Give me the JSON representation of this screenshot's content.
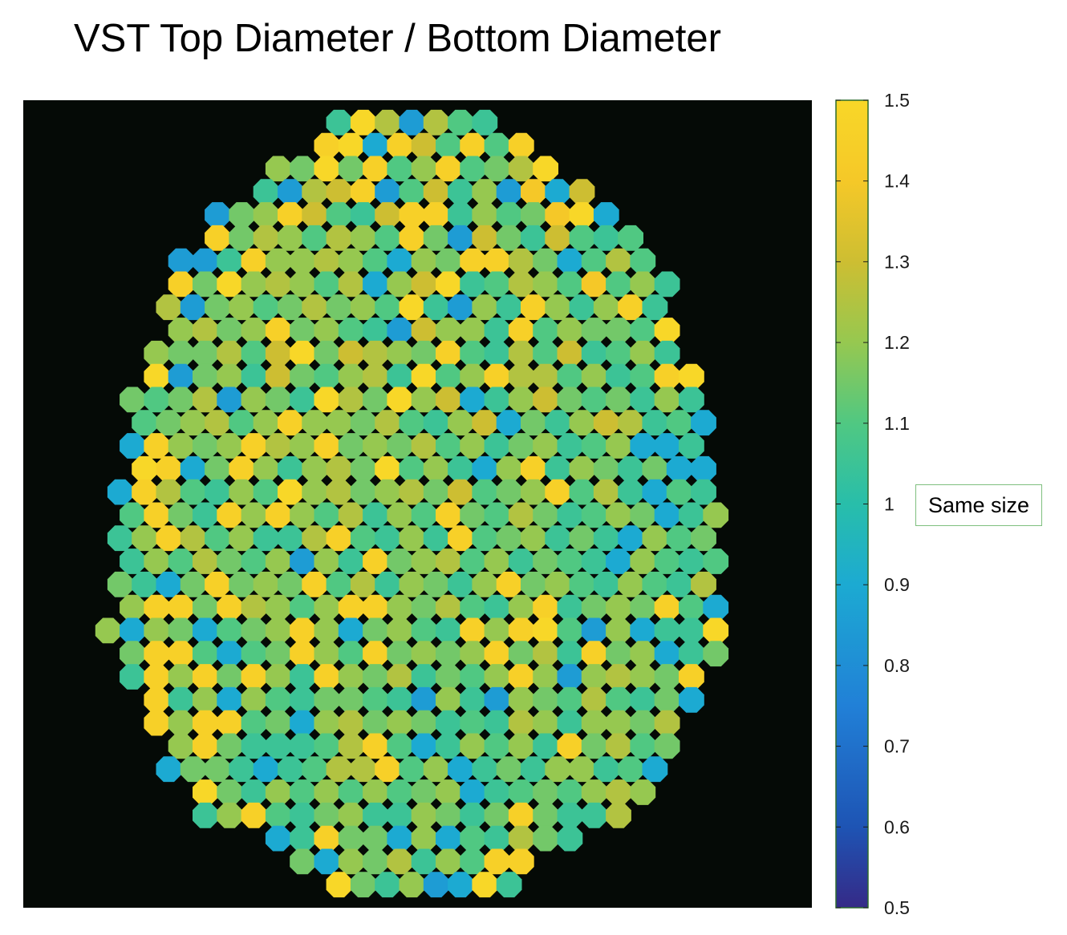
{
  "title": "VST Top Diameter / Bottom Diameter",
  "chart_data": {
    "type": "heatmap",
    "title": "VST Top Diameter / Bottom Diameter",
    "marker": "hexagonal cells packed in a circular bundle",
    "background_color": "#000000",
    "colormap": "parula",
    "colorbar": {
      "range": [
        0.5,
        1.5
      ],
      "ticks": [
        0.5,
        0.6,
        0.7,
        0.8,
        0.9,
        1,
        1.1,
        1.2,
        1.3,
        1.4,
        1.5
      ],
      "tick_labels": [
        "0.5",
        "0.6",
        "0.7",
        "0.8",
        "0.9",
        "1",
        "1.1",
        "1.2",
        "1.3",
        "1.4",
        "1.5"
      ],
      "position": "right"
    },
    "annotation": {
      "text": "Same size",
      "at_value": 1
    },
    "rows": [
      [
        1.05,
        1.5,
        1.25,
        0.85,
        1.25,
        1.1,
        1.05
      ],
      [
        1.45,
        1.5,
        0.9,
        1.45,
        1.3,
        1.1,
        1.45,
        1.1,
        1.45
      ],
      [
        1.2,
        1.15,
        1.5,
        1.15,
        1.45,
        1.1,
        1.2,
        1.45,
        1.1,
        1.15,
        1.25,
        1.5
      ],
      [
        1.05,
        0.85,
        1.25,
        1.3,
        1.45,
        0.85,
        1.1,
        1.3,
        1.05,
        1.2,
        0.85,
        1.4,
        0.9,
        1.3
      ],
      [
        0.85,
        1.15,
        1.2,
        1.45,
        1.3,
        1.1,
        1.05,
        1.3,
        1.45,
        1.45,
        1.05,
        1.2,
        1.1,
        1.15,
        1.4,
        1.5,
        0.9
      ],
      [
        1.45,
        1.15,
        1.25,
        1.2,
        1.1,
        1.25,
        1.2,
        1.1,
        1.45,
        1.15,
        0.85,
        1.3,
        1.15,
        1.05,
        1.3,
        1.1,
        1.05,
        1.1
      ],
      [
        0.85,
        0.85,
        1.05,
        1.45,
        1.2,
        1.2,
        1.25,
        1.2,
        1.1,
        0.9,
        1.2,
        1.15,
        1.45,
        1.45,
        1.25,
        1.15,
        0.9,
        1.1,
        1.25,
        1.1
      ],
      [
        1.45,
        1.15,
        1.5,
        1.2,
        1.25,
        1.2,
        1.1,
        1.25,
        0.9,
        1.2,
        1.3,
        1.5,
        1.05,
        1.1,
        1.25,
        1.2,
        1.1,
        1.4,
        1.1,
        1.2,
        1.05
      ],
      [
        1.25,
        0.85,
        1.15,
        1.2,
        1.1,
        1.15,
        1.25,
        1.15,
        1.2,
        1.1,
        1.5,
        1.05,
        0.85,
        1.2,
        1.05,
        1.45,
        1.2,
        1.05,
        1.2,
        1.45,
        1.05
      ],
      [
        1.2,
        1.25,
        1.15,
        1.2,
        1.45,
        1.15,
        1.2,
        1.1,
        1.05,
        0.85,
        1.3,
        1.2,
        1.2,
        1.05,
        1.45,
        1.1,
        1.2,
        1.15,
        1.15,
        1.1,
        1.5
      ],
      [
        1.2,
        1.15,
        1.15,
        1.25,
        1.1,
        1.3,
        1.5,
        1.15,
        1.3,
        1.25,
        1.2,
        1.15,
        1.45,
        1.1,
        1.05,
        1.25,
        1.1,
        1.3,
        1.05,
        1.1,
        1.2,
        1.05
      ],
      [
        1.5,
        0.85,
        1.15,
        1.2,
        1.05,
        1.3,
        1.15,
        1.1,
        1.2,
        1.25,
        1.05,
        1.5,
        1.1,
        1.2,
        1.45,
        1.25,
        1.25,
        1.1,
        1.2,
        1.05,
        1.1,
        1.45,
        1.5
      ],
      [
        1.15,
        1.1,
        1.15,
        1.25,
        0.85,
        1.2,
        1.15,
        1.05,
        1.5,
        1.25,
        1.15,
        1.5,
        1.2,
        1.3,
        0.9,
        1.05,
        1.2,
        1.3,
        1.15,
        1.1,
        1.15,
        1.05,
        1.2,
        1.05
      ],
      [
        1.1,
        1.15,
        1.2,
        1.25,
        1.1,
        1.2,
        1.45,
        1.2,
        1.2,
        1.15,
        1.25,
        1.1,
        1.05,
        1.2,
        1.3,
        0.9,
        1.15,
        1.05,
        1.2,
        1.3,
        1.25,
        1.05,
        1.1,
        0.9
      ],
      [
        0.9,
        1.45,
        1.2,
        1.15,
        1.2,
        1.45,
        1.25,
        1.2,
        1.45,
        1.15,
        1.2,
        1.15,
        1.25,
        1.1,
        1.2,
        1.05,
        1.15,
        1.2,
        1.05,
        1.1,
        1.2,
        0.9,
        0.9,
        1.05
      ],
      [
        1.5,
        1.45,
        0.9,
        1.15,
        1.45,
        1.2,
        1.05,
        1.2,
        1.25,
        1.15,
        1.5,
        1.1,
        1.2,
        1.05,
        0.9,
        1.2,
        1.45,
        1.05,
        1.2,
        1.15,
        1.05,
        1.15,
        0.9,
        0.9
      ],
      [
        0.9,
        1.45,
        1.25,
        1.1,
        1.05,
        1.2,
        1.1,
        1.5,
        1.2,
        1.25,
        1.15,
        1.2,
        1.25,
        1.15,
        1.3,
        1.1,
        1.15,
        1.2,
        1.45,
        1.1,
        1.25,
        1.05,
        0.9,
        1.1,
        1.05
      ],
      [
        1.1,
        1.45,
        1.15,
        1.05,
        1.45,
        1.2,
        1.45,
        1.2,
        1.1,
        1.25,
        1.05,
        1.2,
        1.1,
        1.45,
        1.15,
        1.1,
        1.25,
        1.15,
        1.05,
        1.1,
        1.2,
        1.15,
        0.9,
        1.05,
        1.2
      ],
      [
        1.05,
        1.2,
        1.45,
        1.25,
        1.1,
        1.2,
        1.05,
        1.05,
        1.25,
        1.45,
        1.1,
        1.05,
        1.2,
        1.05,
        1.45,
        1.1,
        1.15,
        1.2,
        1.05,
        1.15,
        1.05,
        0.9,
        1.2,
        1.1,
        1.15
      ],
      [
        1.05,
        1.2,
        1.1,
        1.25,
        1.15,
        1.1,
        1.2,
        0.85,
        1.2,
        1.05,
        1.45,
        1.15,
        1.2,
        1.25,
        1.1,
        1.2,
        1.05,
        1.15,
        1.1,
        1.05,
        0.9,
        1.2,
        1.1,
        1.05,
        1.1
      ],
      [
        1.15,
        1.05,
        0.9,
        1.15,
        1.45,
        1.15,
        1.2,
        1.15,
        1.45,
        1.1,
        1.25,
        1.05,
        1.2,
        1.15,
        1.05,
        1.2,
        1.45,
        1.15,
        1.2,
        1.1,
        1.05,
        1.2,
        1.1,
        1.05,
        1.25
      ],
      [
        1.2,
        1.45,
        1.45,
        1.15,
        1.45,
        1.25,
        1.2,
        1.1,
        1.2,
        1.45,
        1.45,
        1.2,
        1.15,
        1.25,
        1.1,
        1.05,
        1.2,
        1.45,
        1.05,
        1.15,
        1.2,
        1.15,
        1.45,
        1.1,
        0.9
      ],
      [
        1.2,
        0.9,
        1.2,
        1.15,
        0.9,
        1.1,
        1.15,
        1.2,
        1.45,
        1.2,
        0.9,
        1.15,
        1.2,
        1.1,
        1.05,
        1.45,
        1.2,
        1.45,
        1.5,
        1.1,
        0.85,
        1.2,
        0.9,
        1.05,
        1.05,
        1.5
      ],
      [
        1.15,
        1.45,
        1.45,
        1.1,
        0.9,
        1.1,
        1.15,
        1.45,
        1.2,
        1.1,
        1.45,
        1.15,
        1.2,
        1.15,
        1.2,
        1.45,
        1.15,
        1.25,
        1.05,
        1.45,
        1.15,
        1.2,
        0.9,
        1.05,
        1.15
      ],
      [
        1.05,
        1.45,
        1.2,
        1.45,
        1.15,
        1.45,
        1.2,
        1.05,
        1.45,
        1.2,
        1.15,
        1.25,
        1.05,
        1.15,
        1.1,
        1.2,
        1.45,
        1.2,
        0.85,
        1.2,
        1.25,
        1.2,
        1.15,
        1.45
      ],
      [
        1.45,
        1.05,
        1.2,
        0.9,
        1.2,
        1.1,
        1.05,
        1.15,
        1.15,
        1.1,
        1.05,
        0.85,
        1.2,
        1.05,
        0.85,
        1.2,
        1.15,
        1.1,
        1.25,
        1.1,
        1.05,
        1.15,
        0.9
      ],
      [
        1.45,
        1.2,
        1.45,
        1.45,
        1.1,
        1.15,
        0.9,
        1.2,
        1.25,
        1.15,
        1.2,
        1.15,
        1.05,
        1.1,
        1.05,
        1.25,
        1.2,
        1.05,
        1.2,
        1.2,
        1.15,
        1.25
      ],
      [
        1.2,
        1.45,
        1.15,
        1.05,
        1.05,
        1.05,
        1.1,
        1.25,
        1.45,
        1.1,
        0.9,
        1.05,
        1.2,
        1.1,
        1.2,
        1.05,
        1.45,
        1.15,
        1.25,
        1.1,
        1.15
      ],
      [
        0.9,
        1.15,
        1.15,
        1.05,
        0.9,
        1.05,
        1.1,
        1.25,
        1.25,
        1.45,
        1.1,
        1.2,
        0.9,
        1.05,
        1.15,
        1.05,
        1.2,
        1.2,
        1.05,
        1.1,
        0.9
      ],
      [
        1.5,
        1.15,
        1.05,
        1.2,
        1.1,
        1.2,
        1.1,
        1.2,
        1.1,
        1.15,
        1.2,
        0.9,
        1.05,
        1.1,
        1.15,
        1.1,
        1.2,
        1.25,
        1.2
      ],
      [
        1.05,
        1.2,
        1.45,
        1.1,
        1.05,
        1.15,
        1.2,
        1.05,
        1.05,
        1.2,
        1.15,
        1.05,
        1.15,
        1.45,
        1.15,
        1.05,
        1.05,
        1.25
      ],
      [
        0.9,
        1.05,
        1.45,
        1.15,
        1.15,
        0.9,
        1.2,
        0.9,
        1.1,
        1.05,
        1.25,
        1.15,
        1.05
      ],
      [
        1.15,
        0.9,
        1.2,
        1.15,
        1.25,
        1.05,
        1.2,
        1.1,
        1.45,
        1.45
      ],
      [
        1.5,
        1.15,
        1.05,
        1.2,
        0.85,
        0.9,
        1.5,
        1.05
      ]
    ]
  }
}
